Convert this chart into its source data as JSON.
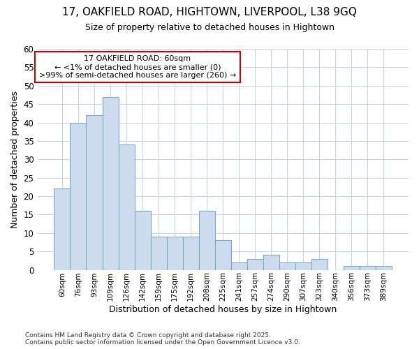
{
  "title": "17, OAKFIELD ROAD, HIGHTOWN, LIVERPOOL, L38 9GQ",
  "subtitle": "Size of property relative to detached houses in Hightown",
  "xlabel": "Distribution of detached houses by size in Hightown",
  "ylabel": "Number of detached properties",
  "footer": "Contains HM Land Registry data © Crown copyright and database right 2025.\nContains public sector information licensed under the Open Government Licence v3.0.",
  "categories": [
    "60sqm",
    "76sqm",
    "93sqm",
    "109sqm",
    "126sqm",
    "142sqm",
    "159sqm",
    "175sqm",
    "192sqm",
    "208sqm",
    "225sqm",
    "241sqm",
    "257sqm",
    "274sqm",
    "290sqm",
    "307sqm",
    "323sqm",
    "340sqm",
    "356sqm",
    "373sqm",
    "389sqm"
  ],
  "values": [
    22,
    40,
    42,
    47,
    34,
    16,
    9,
    9,
    9,
    16,
    8,
    2,
    3,
    4,
    2,
    2,
    3,
    0,
    1,
    1,
    1
  ],
  "bar_color": "#ccdcee",
  "bar_edge_color": "#7aaac8",
  "highlight_text": "17 OAKFIELD ROAD: 60sqm\n← <1% of detached houses are smaller (0)\n>99% of semi-detached houses are larger (260) →",
  "highlight_box_facecolor": "#ffffff",
  "highlight_box_edge": "#cc0000",
  "grid_color": "#c8d4e0",
  "background_color": "#ffffff",
  "ylim": [
    0,
    60
  ],
  "yticks": [
    0,
    5,
    10,
    15,
    20,
    25,
    30,
    35,
    40,
    45,
    50,
    55,
    60
  ]
}
